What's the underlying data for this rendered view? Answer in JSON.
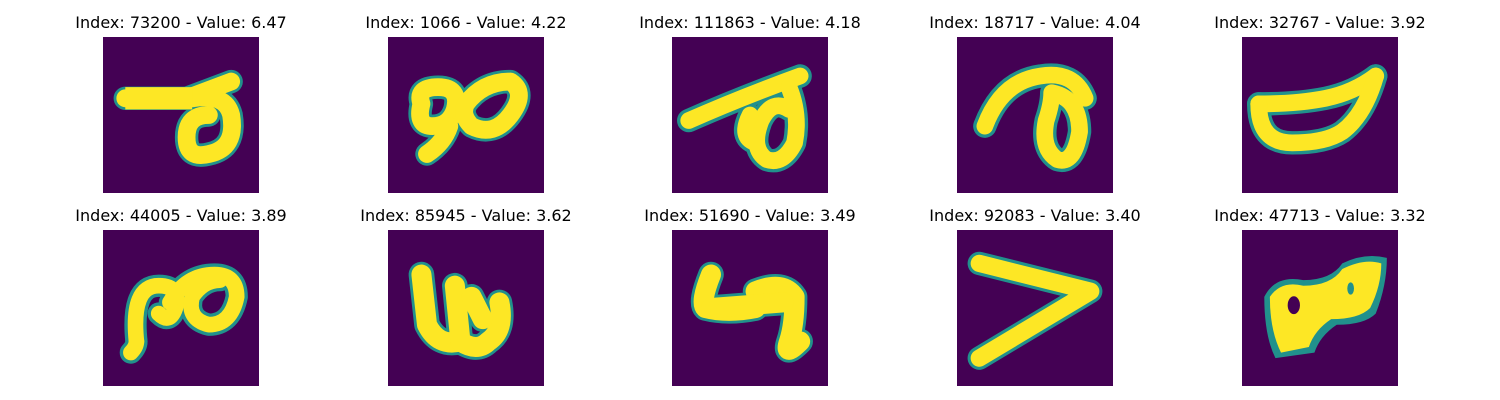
{
  "colors": {
    "background": "#440154",
    "edge": "#21918c",
    "stroke": "#fde725"
  },
  "panels": [
    {
      "index": "73200",
      "value": "6.47",
      "title": "Index: 73200 - Value: 6.47",
      "glyph": "hooked stroke with loop"
    },
    {
      "index": "1066",
      "value": "4.22",
      "title": "Index: 1066 - Value: 4.22",
      "glyph": "double loop"
    },
    {
      "index": "111863",
      "value": "4.18",
      "title": "Index: 111863 - Value: 4.18",
      "glyph": "slanted stroke with loop"
    },
    {
      "index": "18717",
      "value": "4.04",
      "title": "Index: 18717 - Value: 4.04",
      "glyph": "curved hook with loop"
    },
    {
      "index": "32767",
      "value": "3.92",
      "title": "Index: 32767 - Value: 3.92",
      "glyph": "bowl shape"
    },
    {
      "index": "44005",
      "value": "3.89",
      "title": "Index: 44005 - Value: 3.89",
      "glyph": "double loop with tail"
    },
    {
      "index": "85945",
      "value": "3.62",
      "title": "Index: 85945 - Value: 3.62",
      "glyph": "w-like shape"
    },
    {
      "index": "51690",
      "value": "3.49",
      "title": "Index: 51690 - Value: 3.49",
      "glyph": "four-like shape"
    },
    {
      "index": "92083",
      "value": "3.40",
      "title": "Index: 92083 - Value: 3.40",
      "glyph": "greater-than shape"
    },
    {
      "index": "47713",
      "value": "3.32",
      "title": "Index: 47713 - Value: 3.32",
      "glyph": "filled blob with holes"
    }
  ]
}
